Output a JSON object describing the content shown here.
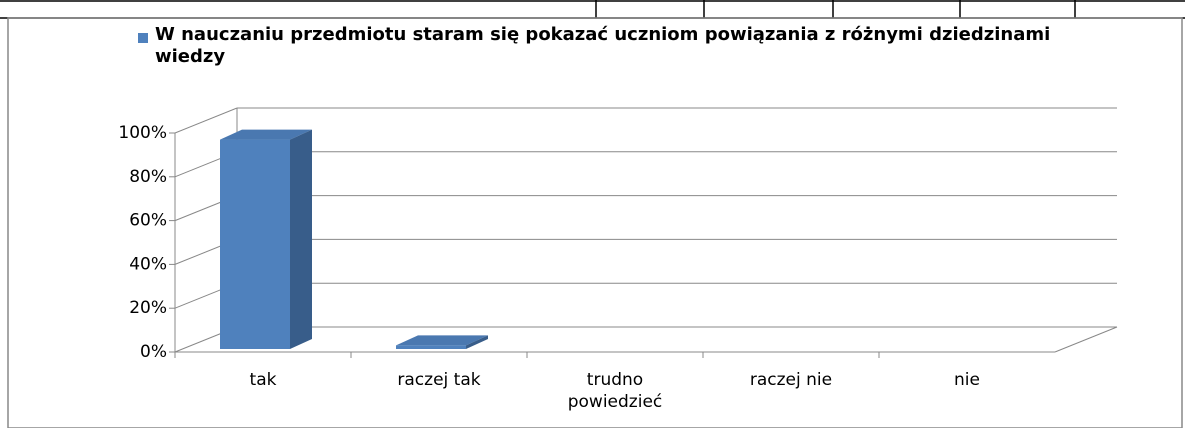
{
  "chart_data": {
    "type": "bar3d",
    "series": [
      {
        "name": "W nauczaniu przedmiotu staram się pokazać uczniom powiązania z różnymi dziedzinami wiedzy",
        "color": "#4f81bd",
        "values": [
          97,
          3,
          0,
          0,
          0
        ]
      }
    ],
    "categories": [
      "tak",
      "raczej tak",
      "trudno powiedzieć",
      "raczej nie",
      "nie"
    ],
    "ylim": [
      0,
      100
    ],
    "yticks": [
      {
        "value": 0,
        "label": "0%"
      },
      {
        "value": 20,
        "label": "20%"
      },
      {
        "value": 40,
        "label": "40%"
      },
      {
        "value": 60,
        "label": "60%"
      },
      {
        "value": 80,
        "label": "80%"
      },
      {
        "value": 100,
        "label": "100%"
      }
    ],
    "grid": true,
    "legend": "top"
  }
}
